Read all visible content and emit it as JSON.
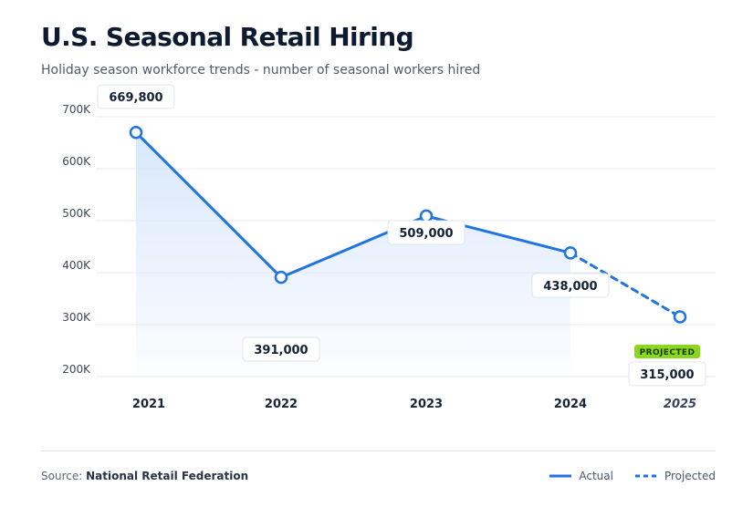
{
  "header": {
    "title": "U.S. Seasonal Retail Hiring",
    "subtitle": "Holiday season workforce trends - number of seasonal workers hired"
  },
  "footer": {
    "source_prefix": "Source:",
    "source_name": "National Retail Federation"
  },
  "legend": {
    "actual_label": "Actual",
    "projected_label": "Projected"
  },
  "colors": {
    "line": "#1f74e0",
    "fill_top": "#d6e6fb",
    "grid": "#e6e9ef",
    "badge_bg": "#8bd61f",
    "badge_text": "#1b3a00",
    "label_border": "#dfe4ec"
  },
  "chart_data": {
    "type": "line",
    "title": "U.S. Seasonal Retail Hiring",
    "xlabel": "",
    "ylabel": "",
    "categories": [
      "2021",
      "2022",
      "2023",
      "2024",
      "2025"
    ],
    "ylim": [
      200000,
      700000
    ],
    "y_ticks": [
      200000,
      300000,
      400000,
      500000,
      600000,
      700000
    ],
    "y_tick_labels": [
      "200K",
      "300K",
      "400K",
      "500K",
      "600K",
      "700K"
    ],
    "series": [
      {
        "name": "Actual",
        "style": "solid",
        "x": [
          "2021",
          "2022",
          "2023",
          "2024"
        ],
        "values": [
          669800,
          391000,
          509000,
          438000
        ],
        "labels": [
          "669,800",
          "391,000",
          "509,000",
          "438,000"
        ]
      },
      {
        "name": "Projected",
        "style": "dashed",
        "x": [
          "2024",
          "2025"
        ],
        "values": [
          438000,
          315000
        ],
        "labels": [
          "",
          "315,000"
        ],
        "badge": "PROJECTED"
      }
    ],
    "grid": true,
    "legend_position": "bottom-right"
  }
}
